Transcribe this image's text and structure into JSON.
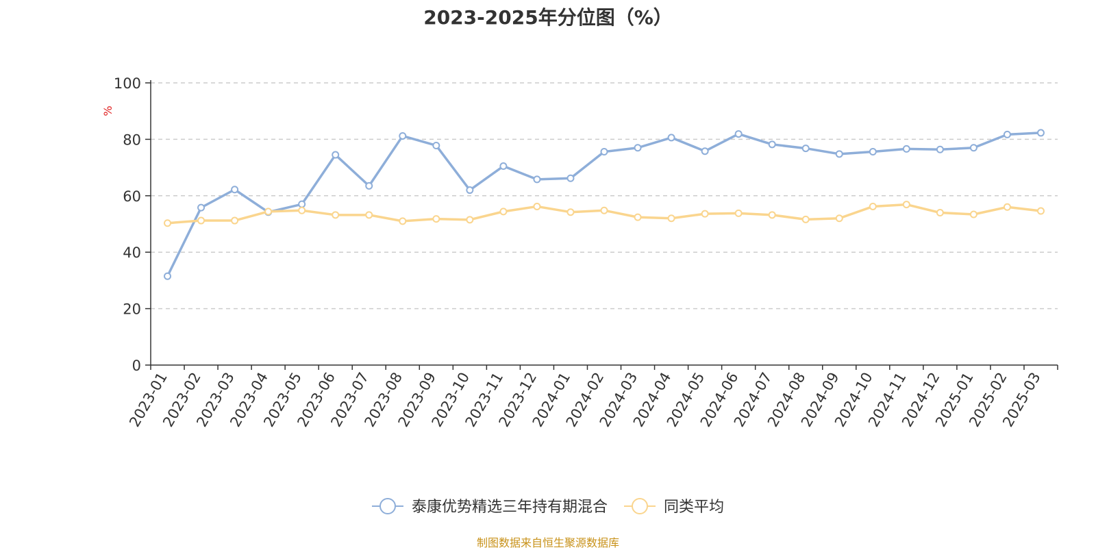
{
  "chart_data": {
    "type": "line",
    "title": "2023-2025年分位图（%）",
    "ylabel": "%",
    "xlabel": "",
    "ylim": [
      0,
      100
    ],
    "yticks": [
      0,
      20,
      40,
      60,
      80,
      100
    ],
    "grid": "horizontal dashed",
    "legend_position": "bottom",
    "categories": [
      "2023-01",
      "2023-02",
      "2023-03",
      "2023-04",
      "2023-05",
      "2023-06",
      "2023-07",
      "2023-08",
      "2023-09",
      "2023-10",
      "2023-11",
      "2023-12",
      "2024-01",
      "2024-02",
      "2024-03",
      "2024-04",
      "2024-05",
      "2024-06",
      "2024-07",
      "2024-08",
      "2024-09",
      "2024-10",
      "2024-11",
      "2024-12",
      "2025-01",
      "2025-02",
      "2025-03"
    ],
    "series": [
      {
        "name": "泰康优势精选三年持有期混合",
        "color": "#8eaed9",
        "values": [
          31.5,
          55.8,
          62.2,
          54.2,
          57.0,
          74.5,
          63.5,
          81.2,
          77.8,
          62.0,
          70.5,
          65.8,
          66.2,
          75.6,
          77.0,
          80.6,
          75.8,
          81.9,
          78.2,
          76.8,
          74.8,
          75.6,
          76.6,
          76.4,
          77.0,
          81.7,
          82.3
        ]
      },
      {
        "name": "同类平均",
        "color": "#fad58e",
        "values": [
          50.3,
          51.2,
          51.2,
          54.4,
          54.8,
          53.2,
          53.2,
          51.0,
          51.8,
          51.5,
          54.4,
          56.2,
          54.2,
          54.8,
          52.4,
          52.0,
          53.6,
          53.8,
          53.2,
          51.6,
          52.0,
          56.2,
          56.9,
          54.0,
          53.4,
          56.0,
          54.6
        ]
      }
    ]
  },
  "footer": {
    "source": "制图数据来自恒生聚源数据库"
  }
}
